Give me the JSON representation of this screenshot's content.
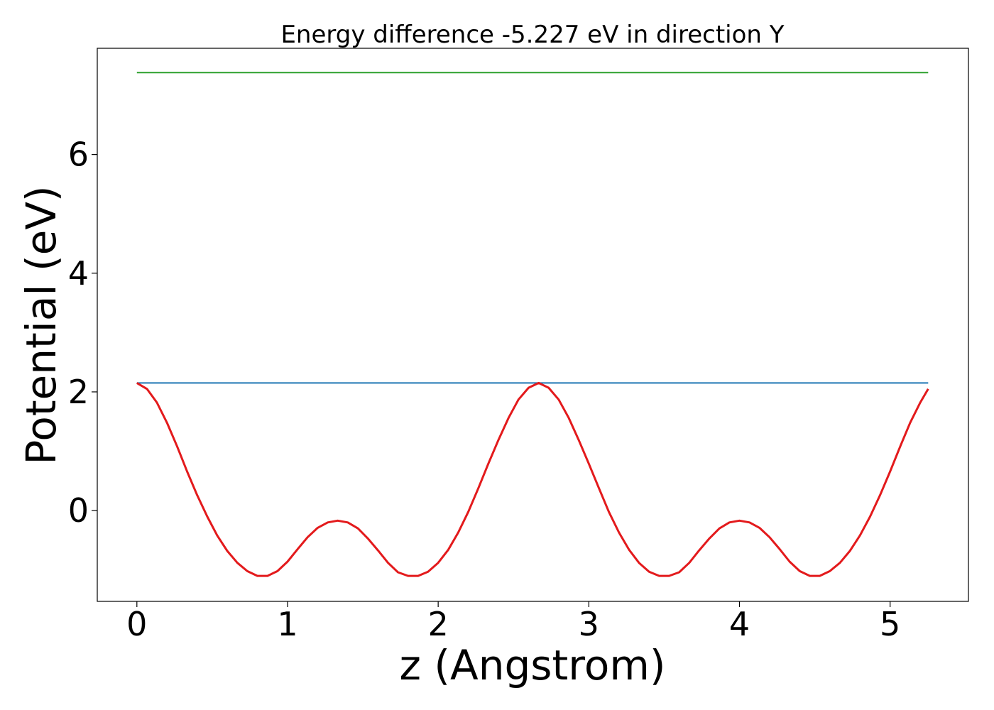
{
  "chart_data": {
    "type": "line",
    "title": "Energy difference -5.227 eV in direction Y",
    "xlabel": "z (Angstrom)",
    "ylabel": "Potential (eV)",
    "xlim": [
      -0.263,
      5.52
    ],
    "ylim": [
      -1.53,
      7.79
    ],
    "xticks": [
      0,
      1,
      2,
      3,
      4,
      5
    ],
    "yticks": [
      0,
      2,
      4,
      6
    ],
    "grid": false,
    "colors": {
      "potential": "#e31a1c",
      "reference_low": "#1f77b4",
      "reference_high": "#2ca02c"
    },
    "series": [
      {
        "key": "potential",
        "x": [
          0,
          0.067,
          0.133,
          0.2,
          0.267,
          0.333,
          0.4,
          0.467,
          0.533,
          0.6,
          0.667,
          0.733,
          0.8,
          0.867,
          0.933,
          1.0,
          1.067,
          1.133,
          1.2,
          1.267,
          1.333,
          1.4,
          1.467,
          1.533,
          1.6,
          1.667,
          1.733,
          1.8,
          1.867,
          1.933,
          2.0,
          2.067,
          2.133,
          2.2,
          2.267,
          2.333,
          2.4,
          2.467,
          2.533,
          2.6,
          2.667,
          2.733,
          2.8,
          2.867,
          2.933,
          3.0,
          3.067,
          3.133,
          3.2,
          3.267,
          3.333,
          3.4,
          3.467,
          3.533,
          3.6,
          3.667,
          3.733,
          3.8,
          3.867,
          3.933,
          4.0,
          4.067,
          4.133,
          4.2,
          4.267,
          4.333,
          4.4,
          4.467,
          4.533,
          4.6,
          4.667,
          4.733,
          4.8,
          4.867,
          4.933,
          5.0,
          5.067,
          5.133,
          5.2,
          5.253
        ],
        "y": [
          2.15,
          2.05,
          1.82,
          1.48,
          1.08,
          0.66,
          0.26,
          -0.1,
          -0.42,
          -0.68,
          -0.88,
          -1.02,
          -1.1,
          -1.1,
          -1.02,
          -0.86,
          -0.65,
          -0.45,
          -0.29,
          -0.2,
          -0.17,
          -0.2,
          -0.3,
          -0.47,
          -0.67,
          -0.88,
          -1.04,
          -1.1,
          -1.1,
          -1.03,
          -0.88,
          -0.66,
          -0.37,
          -0.02,
          0.38,
          0.79,
          1.19,
          1.56,
          1.87,
          2.07,
          2.15,
          2.07,
          1.87,
          1.56,
          1.19,
          0.79,
          0.38,
          -0.02,
          -0.37,
          -0.66,
          -0.88,
          -1.03,
          -1.1,
          -1.1,
          -1.04,
          -0.88,
          -0.67,
          -0.47,
          -0.3,
          -0.2,
          -0.17,
          -0.2,
          -0.29,
          -0.45,
          -0.65,
          -0.86,
          -1.02,
          -1.1,
          -1.1,
          -1.02,
          -0.88,
          -0.68,
          -0.42,
          -0.1,
          0.26,
          0.66,
          1.08,
          1.48,
          1.82,
          2.05
        ]
      },
      {
        "key": "reference_low",
        "x": [
          0,
          5.253
        ],
        "y": [
          2.15,
          2.15
        ]
      },
      {
        "key": "reference_high",
        "x": [
          0,
          5.253
        ],
        "y": [
          7.38,
          7.38
        ]
      }
    ]
  }
}
